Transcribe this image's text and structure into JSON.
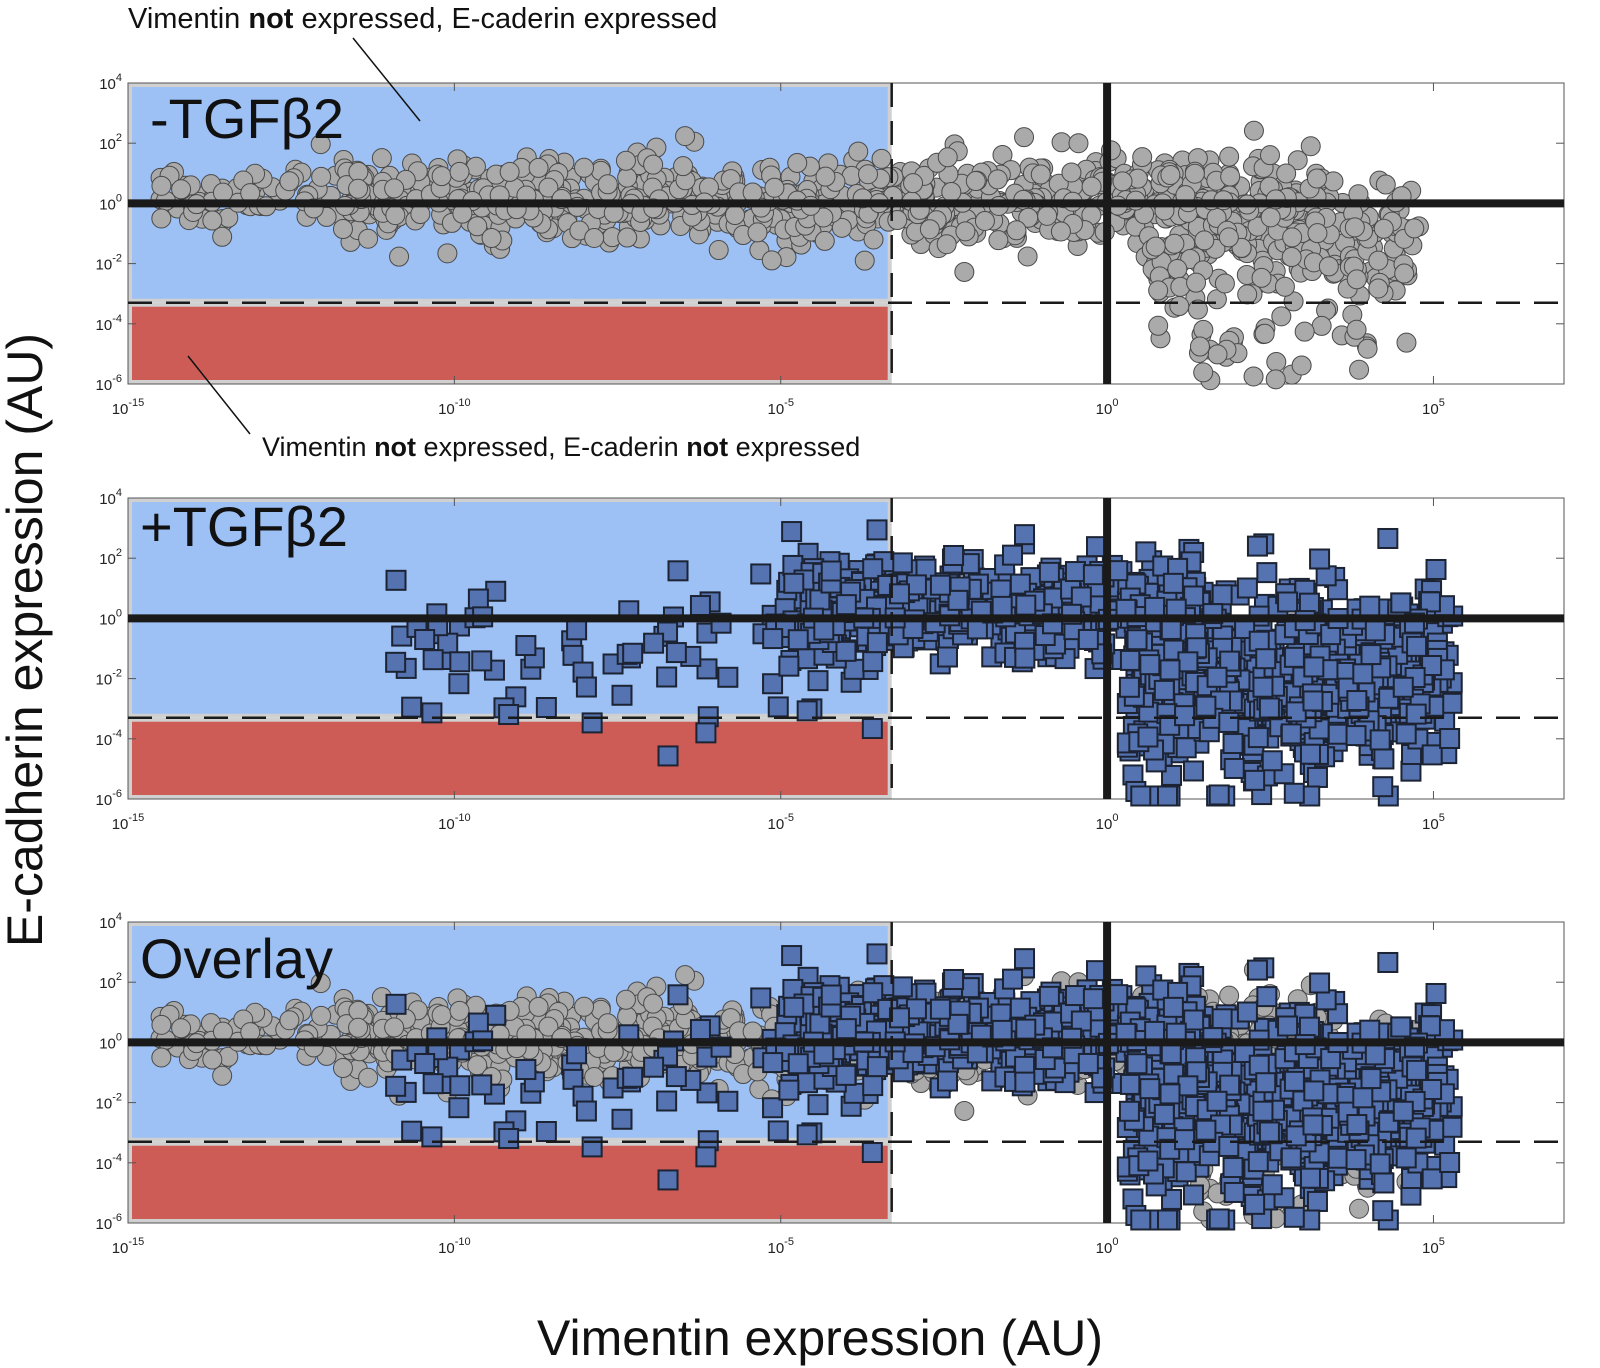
{
  "chart_data": {
    "type": "scatter",
    "xlabel": "Vimentin expression (AU)",
    "ylabel": "E-cadherin expression (AU)",
    "x_scale": "log",
    "y_scale": "log",
    "xlim_log10": [
      -15,
      7
    ],
    "ylim_log10": [
      -6,
      4
    ],
    "x_ticks": [
      {
        "base": "10",
        "exp": "-15",
        "value_log10": -15
      },
      {
        "base": "10",
        "exp": "-10",
        "value_log10": -10
      },
      {
        "base": "10",
        "exp": "-5",
        "value_log10": -5
      },
      {
        "base": "10",
        "exp": "0",
        "value_log10": 0
      },
      {
        "base": "10",
        "exp": "5",
        "value_log10": 5
      }
    ],
    "y_ticks": [
      {
        "base": "10",
        "exp": "4",
        "value_log10": 4
      },
      {
        "base": "10",
        "exp": "2",
        "value_log10": 2
      },
      {
        "base": "10",
        "exp": "0",
        "value_log10": 0
      },
      {
        "base": "10",
        "exp": "-2",
        "value_log10": -2
      },
      {
        "base": "10",
        "exp": "-4",
        "value_log10": -4
      },
      {
        "base": "10",
        "exp": "-6",
        "value_log10": -6
      }
    ],
    "reference_lines": {
      "horizontal_solid_log10": 0,
      "vertical_solid_log10": 0,
      "horizontal_dashed_log10": -3.3,
      "vertical_dashed_log10": -3.3
    },
    "regions": [
      {
        "id": "vim-not-ecad-expressed",
        "x_range_log10": [
          -15,
          -3.3
        ],
        "y_range_log10": [
          -3.3,
          4
        ],
        "color": "#9dc0f5"
      },
      {
        "id": "vim-not-ecad-not-expressed",
        "x_range_log10": [
          -15,
          -3.3
        ],
        "y_range_log10": [
          -6,
          -3.3
        ],
        "color": "#cd5c57"
      }
    ],
    "panels": [
      {
        "label": "-TGFβ2",
        "series": [
          "untreated"
        ]
      },
      {
        "label": "+TGFβ2",
        "series": [
          "treated"
        ]
      },
      {
        "label": "Overlay",
        "series": [
          "untreated",
          "treated"
        ]
      }
    ],
    "series": [
      {
        "id": "untreated",
        "marker": "circle",
        "color": "#aaaaaa",
        "stats": {
          "count": 1200,
          "x_log10_range": [
            -14.6,
            5.4
          ],
          "y_log10_range": [
            -5.9,
            3.7
          ]
        }
      },
      {
        "id": "treated",
        "marker": "square",
        "color": "#5573b0",
        "stats": {
          "count": 1300,
          "x_log10_range": [
            -11.3,
            5.4
          ],
          "y_log10_range": [
            -5.9,
            3.1
          ]
        }
      }
    ],
    "annotations": [
      {
        "id": "top",
        "parts": [
          {
            "text": "Vimentin ",
            "bold": false
          },
          {
            "text": "not",
            "bold": true
          },
          {
            "text": " expressed, E-caderin expressed",
            "bold": false
          }
        ]
      },
      {
        "id": "bottom",
        "parts": [
          {
            "text": "Vimentin ",
            "bold": false
          },
          {
            "text": "not",
            "bold": true
          },
          {
            "text": " expressed, E-caderin ",
            "bold": false
          },
          {
            "text": "not",
            "bold": true
          },
          {
            "text": " expressed",
            "bold": false
          }
        ]
      }
    ]
  }
}
